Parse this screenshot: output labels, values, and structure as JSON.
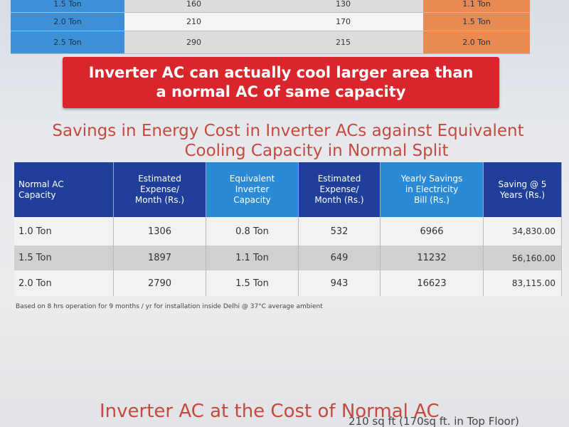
{
  "top_table": {
    "rows": [
      [
        "1.5 Ton",
        "160",
        "130",
        "1.1 Ton"
      ],
      [
        "2.0 Ton",
        "210",
        "170",
        "1.5 Ton"
      ],
      [
        "2.5 Ton",
        "290",
        "215",
        "2.0 Ton"
      ]
    ]
  },
  "banner": {
    "lines": [
      "Inverter AC can actually cool larger area than",
      "a normal AC of same capacity"
    ]
  },
  "title": {
    "lines": [
      "Savings in Energy Cost in Inverter ACs against Equivalent",
      "Cooling Capacity in Normal Split"
    ]
  },
  "table": {
    "headers": [
      [
        "Normal AC",
        "Capacity"
      ],
      [
        "Estimated",
        "Expense/",
        "Month (Rs.)"
      ],
      [
        "Equivalent",
        "Inverter",
        "Capacity"
      ],
      [
        "Estimated",
        "Expense/",
        "Month (Rs.)"
      ],
      [
        "Yearly Savings",
        "in Electricity",
        "Bill (Rs.)"
      ],
      [
        "Saving @ 5",
        "Years (Rs.)"
      ]
    ],
    "rows": [
      [
        "1.0 Ton",
        "1306",
        "0.8 Ton",
        "532",
        "6966",
        "34,830.00"
      ],
      [
        "1.5 Ton",
        "1897",
        "1.1 Ton",
        "649",
        "11232",
        "56,160.00"
      ],
      [
        "2.0 Ton",
        "2790",
        "1.5 Ton",
        "943",
        "16623",
        "83,115.00"
      ]
    ]
  },
  "footnote": "Based on 8 hrs operation for 9 months / yr for installation inside Delhi @ 37°C average ambient",
  "section": {
    "title": "Inverter AC at the Cost of Normal AC",
    "subtitle": "210 sq ft (170sq ft. in Top Floor)"
  }
}
